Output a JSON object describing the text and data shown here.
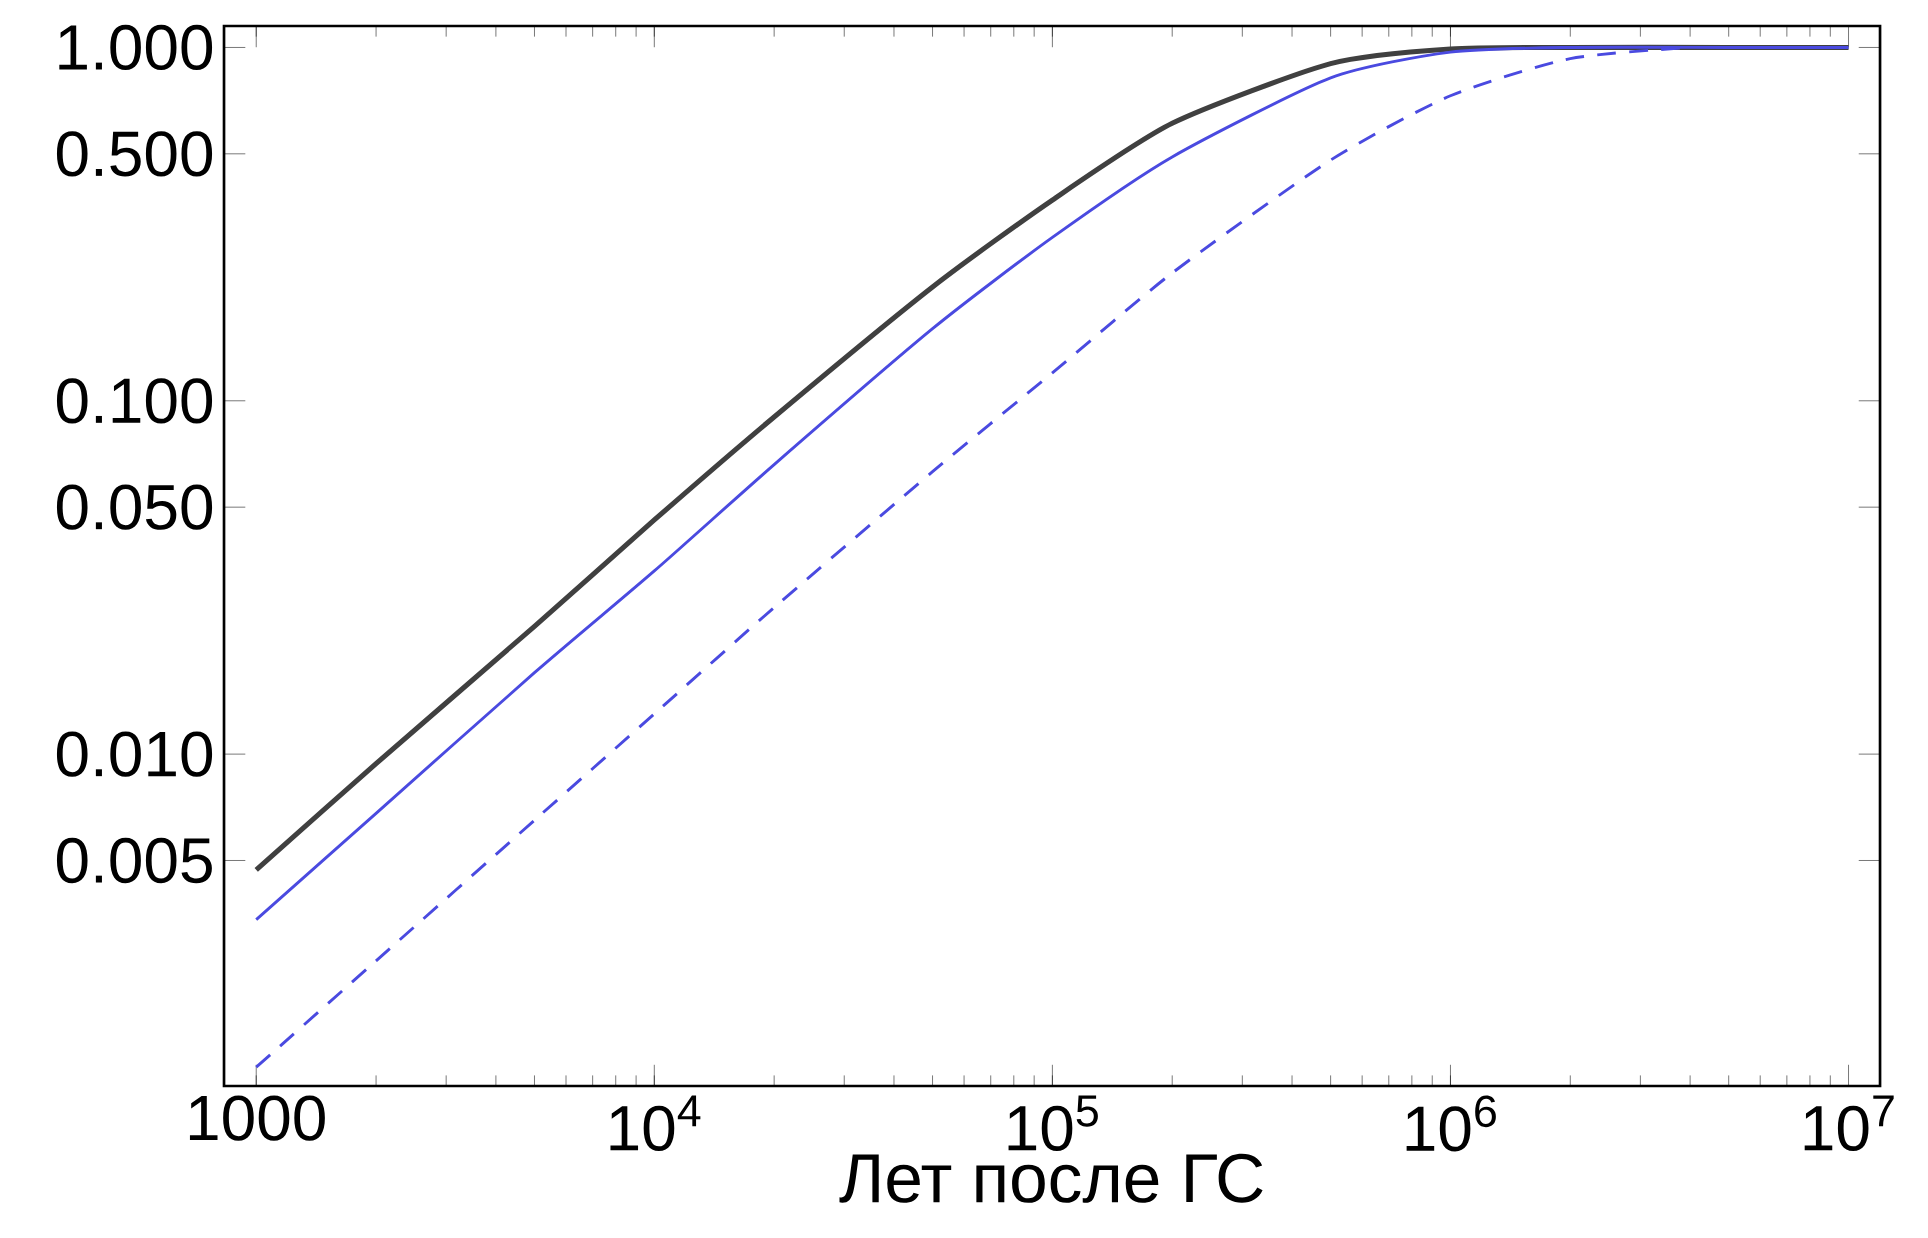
{
  "chart_data": {
    "type": "line",
    "xlabel": "Лет после ГС",
    "log": "xy",
    "xlim": [
      830,
      12000000
    ],
    "ylim": [
      0.00115,
      1.15
    ],
    "xticks": [
      1000,
      {
        "value": 10000,
        "label": "10$^{4}$"
      },
      {
        "value": 100000,
        "label": "10$^{5}$"
      },
      {
        "value": 1000000,
        "label": "10$^{6}$"
      },
      {
        "value": 10000000,
        "label": "10$^{7}$"
      }
    ],
    "yticks": [
      {
        "value": 0.005,
        "label": "0.005"
      },
      {
        "value": 0.01,
        "label": "0.010"
      },
      {
        "value": 0.05,
        "label": "0.050"
      },
      {
        "value": 0.1,
        "label": "0.100"
      },
      {
        "value": 0.5,
        "label": "0.500"
      },
      {
        "value": 1,
        "label": "1.000"
      }
    ],
    "grid": false,
    "marker": "none",
    "series": [
      {
        "color": "#404040",
        "line_style": "solid",
        "x": [
          1000,
          2000,
          5000,
          10000,
          20000,
          50000,
          100000,
          200000,
          500000,
          1000000,
          2000000,
          5000000,
          10000000
        ],
        "values": [
          0.0047,
          0.0094,
          0.023,
          0.046,
          0.09,
          0.21,
          0.37,
          0.61,
          0.9,
          0.99,
          1,
          1,
          1
        ]
      },
      {
        "color": "#4a4ae0",
        "line_style": "solid",
        "x": [
          1000,
          2000,
          5000,
          10000,
          20000,
          50000,
          100000,
          200000,
          500000,
          1000000,
          2000000,
          5000000,
          10000000
        ],
        "values": [
          0.0034,
          0.0068,
          0.017,
          0.033,
          0.066,
          0.16,
          0.29,
          0.49,
          0.82,
          0.97,
          1,
          1,
          1
        ]
      },
      {
        "color": "#4a4ae0",
        "line_style": "dashed",
        "x": [
          1000,
          2000,
          5000,
          10000,
          20000,
          50000,
          100000,
          200000,
          500000,
          1000000,
          2000000,
          4000000
        ],
        "values": [
          0.0013,
          0.0026,
          0.0065,
          0.013,
          0.026,
          0.063,
          0.12,
          0.23,
          0.48,
          0.73,
          0.93,
          1
        ]
      }
    ]
  }
}
